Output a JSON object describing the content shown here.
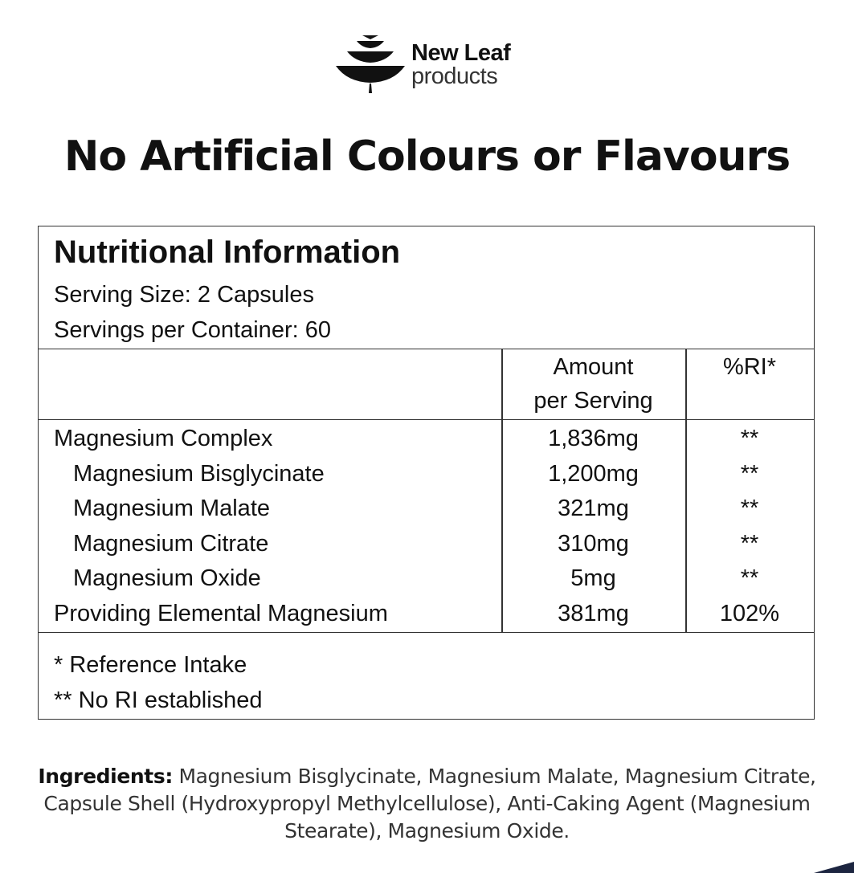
{
  "brand": {
    "line1": "New Leaf",
    "line2": "products"
  },
  "headline": "No Artificial Colours or Flavours",
  "panel": {
    "title": "Nutritional Information",
    "serving_size": "Serving Size: 2 Capsules",
    "servings_per_container": "Servings per Container: 60",
    "columns": {
      "amount_line1": "Amount",
      "amount_line2": "per Serving",
      "ri": "%RI*"
    },
    "rows": [
      {
        "name": "Magnesium Complex",
        "amount": "1,836mg",
        "ri": "**",
        "indent": false
      },
      {
        "name": "Magnesium Bisglycinate",
        "amount": "1,200mg",
        "ri": "**",
        "indent": true
      },
      {
        "name": "Magnesium Malate",
        "amount": "321mg",
        "ri": "**",
        "indent": true
      },
      {
        "name": "Magnesium Citrate",
        "amount": "310mg",
        "ri": "**",
        "indent": true
      },
      {
        "name": "Magnesium Oxide",
        "amount": "5mg",
        "ri": "**",
        "indent": true
      },
      {
        "name": "Providing Elemental Magnesium",
        "amount": "381mg",
        "ri": "102%",
        "indent": false
      }
    ],
    "footnote1": "* Reference Intake",
    "footnote2": "** No RI established"
  },
  "ingredients": {
    "label": "Ingredients:",
    "text": " Magnesium Bisglycinate, Magnesium Malate, Magnesium Citrate, Capsule Shell (Hydroxypropyl Methylcellulose), Anti-Caking Agent (Magnesium Stearate), Magnesium Oxide."
  },
  "colors": {
    "text": "#111111",
    "corner_accent": "#1c2540"
  }
}
